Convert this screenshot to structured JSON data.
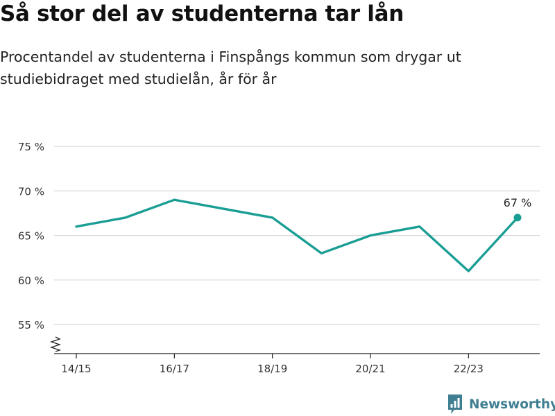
{
  "header": {
    "title": "Så stor del av studenterna tar lån",
    "subtitle": "Procentandel av studenterna i Finspångs kommun som drygar ut studiebidraget med studielån, år för år"
  },
  "brand": {
    "name": "Newsworthy",
    "icon": "newsworthy-logo-icon",
    "color": "#3f7f91"
  },
  "chart_data": {
    "type": "line",
    "x": [
      "14/15",
      "15/16",
      "16/17",
      "17/18",
      "18/19",
      "19/20",
      "20/21",
      "21/22",
      "22/23",
      "23/24"
    ],
    "values": [
      66,
      67,
      69,
      68,
      67,
      63,
      65,
      66,
      61,
      67
    ],
    "x_tick_labels": [
      "14/15",
      "16/17",
      "18/19",
      "20/21",
      "22/23"
    ],
    "y_ticks": [
      55,
      60,
      65,
      70,
      75
    ],
    "y_tick_labels": [
      "55 %",
      "60 %",
      "65 %",
      "70 %",
      "75 %"
    ],
    "ylim": [
      52,
      77
    ],
    "axis_break": true,
    "last_point_label": "67 %",
    "line_color": "#1a9e94",
    "grid": true,
    "legend": "none"
  }
}
